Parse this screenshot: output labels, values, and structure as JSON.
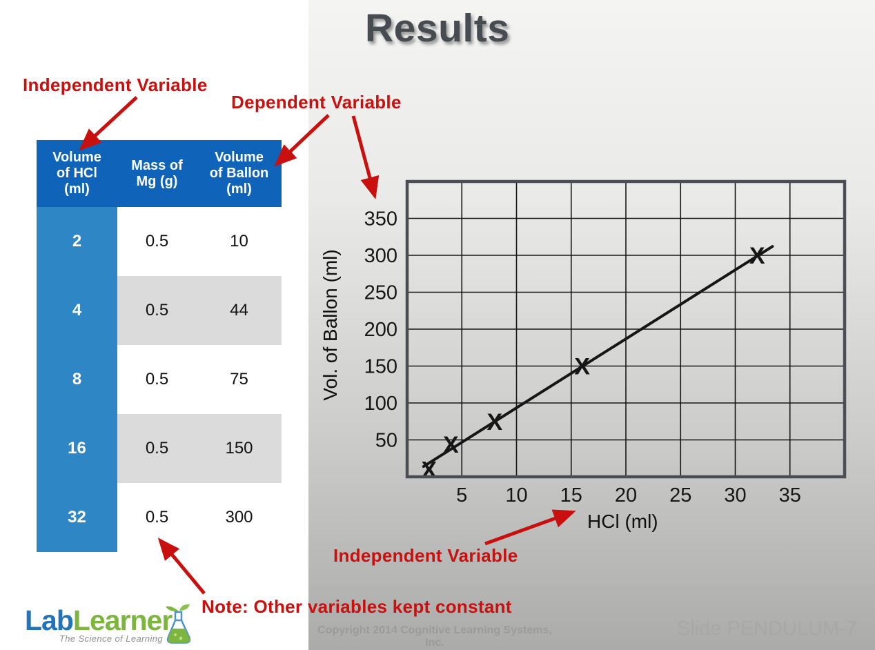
{
  "slide": {
    "title": "Results",
    "footer_copyright": "Copyright 2014 Cognitive Learning Systems, Inc.",
    "footer_slide_label": "Slide PENDULUM-7"
  },
  "annotations": {
    "independent_top": "Independent Variable",
    "dependent": "Dependent Variable",
    "independent_bottom": "Independent Variable",
    "note": "Note: Other variables kept constant"
  },
  "table": {
    "headers": [
      "Volume\nof HCl\n(ml)",
      "Mass of\nMg (g)",
      "Volume\nof Ballon\n(ml)"
    ],
    "rows": [
      {
        "hcl": "2",
        "mg": "0.5",
        "balloon": "10"
      },
      {
        "hcl": "4",
        "mg": "0.5",
        "balloon": "44"
      },
      {
        "hcl": "8",
        "mg": "0.5",
        "balloon": "75"
      },
      {
        "hcl": "16",
        "mg": "0.5",
        "balloon": "150"
      },
      {
        "hcl": "32",
        "mg": "0.5",
        "balloon": "300"
      }
    ]
  },
  "chart_data": {
    "type": "scatter",
    "title": "",
    "xlabel": "HCl (ml)",
    "ylabel": "Vol. of Ballon (ml)",
    "xlim": [
      0,
      40
    ],
    "ylim": [
      0,
      400
    ],
    "x_ticks": [
      5,
      10,
      15,
      20,
      25,
      30,
      35
    ],
    "y_ticks": [
      50,
      100,
      150,
      200,
      250,
      300,
      350
    ],
    "grid": true,
    "legend": false,
    "marker": "X",
    "points": [
      {
        "x": 2,
        "y": 10
      },
      {
        "x": 4,
        "y": 44
      },
      {
        "x": 8,
        "y": 75
      },
      {
        "x": 16,
        "y": 150
      },
      {
        "x": 32,
        "y": 300
      }
    ],
    "trendline": {
      "x1": 1.5,
      "y1": 14,
      "x2": 33.4,
      "y2": 312
    }
  },
  "logo": {
    "part1": "Lab",
    "part2": "Learner",
    "tagline": "The Science of Learning"
  },
  "colors": {
    "header_blue": "#0F63B8",
    "column_blue": "#2E86C5",
    "row_alt_gray": "#DBDBDB",
    "annotation_red": "#C8100E",
    "title_gray": "#474C53",
    "chart_ink": "#161616",
    "chart_border": "#4A4E54",
    "logo_blue": "#2273B8",
    "logo_green": "#7CB63F"
  }
}
